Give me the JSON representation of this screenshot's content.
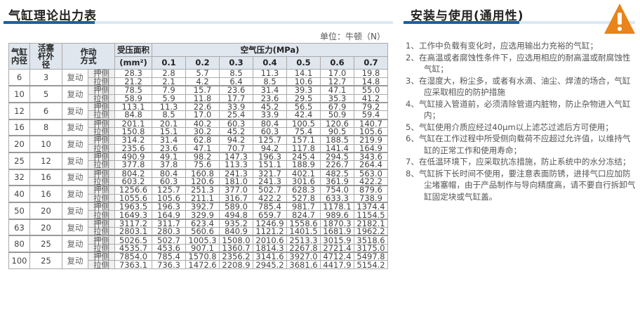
{
  "left": {
    "title": "气缸理论出力表",
    "unit": "单位：牛顿（N）",
    "headers": {
      "bore": "气缸内径",
      "rod": "活塞杆外径",
      "action": "作动方式",
      "area": "受压面积",
      "area_unit": "(mm²)",
      "pressure": "空气压力(MPa)",
      "pressures": [
        "0.1",
        "0.2",
        "0.3",
        "0.4",
        "0.5",
        "0.6",
        "0.7"
      ]
    },
    "action_label": "复动",
    "push": "押侧",
    "pull": "拉侧",
    "rows": [
      {
        "bore": "6",
        "rod": "3",
        "push": [
          "28.3",
          "2.8",
          "5.7",
          "8.5",
          "11.3",
          "14.1",
          "17.0",
          "19.8"
        ],
        "pull": [
          "21.2",
          "2.1",
          "4.2",
          "6.4",
          "8.5",
          "10.6",
          "12.7",
          "14.8"
        ]
      },
      {
        "bore": "10",
        "rod": "5",
        "push": [
          "78.5",
          "7.9",
          "15.7",
          "23.6",
          "31.4",
          "39.3",
          "47.1",
          "55.0"
        ],
        "pull": [
          "58.9",
          "5.9",
          "11.8",
          "17.7",
          "23.6",
          "29.5",
          "35.3",
          "41.2"
        ]
      },
      {
        "bore": "12",
        "rod": "6",
        "push": [
          "113.1",
          "11.3",
          "22.6",
          "33.9",
          "45.2",
          "56.5",
          "67.9",
          "79.2"
        ],
        "pull": [
          "84.8",
          "8.5",
          "17.0",
          "25.4",
          "33.9",
          "42.4",
          "50.9",
          "59.4"
        ]
      },
      {
        "bore": "16",
        "rod": "8",
        "push": [
          "201.1",
          "20.1",
          "40.2",
          "60.3",
          "80.4",
          "100.5",
          "120.6",
          "140.7"
        ],
        "pull": [
          "150.8",
          "15.1",
          "30.2",
          "45.2",
          "60.3",
          "75.4",
          "90.5",
          "105.6"
        ]
      },
      {
        "bore": "20",
        "rod": "10",
        "push": [
          "314.2",
          "31.4",
          "62.8",
          "94.2",
          "125.7",
          "157.1",
          "188.5",
          "219.9"
        ],
        "pull": [
          "235.6",
          "23.6",
          "47.1",
          "70.7",
          "94.2",
          "117.8",
          "141.4",
          "164.9"
        ]
      },
      {
        "bore": "25",
        "rod": "12",
        "push": [
          "490.9",
          "49.1",
          "98.2",
          "147.3",
          "196.3",
          "245.4",
          "294.5",
          "343.6"
        ],
        "pull": [
          "377.8",
          "37.8",
          "75.6",
          "113.3",
          "151.1",
          "188.9",
          "226.7",
          "264.4"
        ]
      },
      {
        "bore": "32",
        "rod": "16",
        "push": [
          "804.2",
          "80.4",
          "160.8",
          "241.3",
          "321.7",
          "402.1",
          "482.5",
          "563.0"
        ],
        "pull": [
          "603.2",
          "60.3",
          "120.6",
          "181.0",
          "241.3",
          "301.6",
          "361.9",
          "422.2"
        ]
      },
      {
        "bore": "40",
        "rod": "16",
        "push": [
          "1256.6",
          "125.7",
          "251.3",
          "377.0",
          "502.7",
          "628.3",
          "754.0",
          "879.6"
        ],
        "pull": [
          "1055.6",
          "105.6",
          "211.1",
          "316.7",
          "422.2",
          "527.8",
          "633.3",
          "738.9"
        ]
      },
      {
        "bore": "50",
        "rod": "20",
        "push": [
          "1963.5",
          "196.3",
          "392.7",
          "589.0",
          "785.4",
          "981.7",
          "1178.1",
          "1374.4"
        ],
        "pull": [
          "1649.3",
          "164.9",
          "329.9",
          "494.8",
          "659.7",
          "824.7",
          "989.6",
          "1154.5"
        ]
      },
      {
        "bore": "63",
        "rod": "20",
        "push": [
          "3117.2",
          "311.7",
          "623.4",
          "935.2",
          "1246.9",
          "1558.6",
          "1870.3",
          "2182.1"
        ],
        "pull": [
          "2803.1",
          "280.3",
          "560.6",
          "840.9",
          "1121.2",
          "1401.5",
          "1681.9",
          "1962.2"
        ]
      },
      {
        "bore": "80",
        "rod": "25",
        "push": [
          "5026.5",
          "502.7",
          "1005.3",
          "1508.0",
          "2010.6",
          "2513.3",
          "3015.9",
          "3518.6"
        ],
        "pull": [
          "4535.7",
          "453.6",
          "907.1",
          "1360.7",
          "1814.3",
          "2267.8",
          "2721.4",
          "3175.0"
        ]
      },
      {
        "bore": "100",
        "rod": "25",
        "push": [
          "7854.0",
          "785.4",
          "1570.8",
          "2356.2",
          "3141.6",
          "3927.0",
          "4712.4",
          "5497.8"
        ],
        "pull": [
          "7363.1",
          "736.3",
          "1472.6",
          "2208.9",
          "2945.2",
          "3681.6",
          "4417.9",
          "5154.2"
        ]
      }
    ]
  },
  "right": {
    "title": "安装与使用(通用性)",
    "warning_icon": "warning-triangle-icon",
    "warning_color": "#e8841a",
    "notes": [
      "1、工作中负载有变化时，应选用输出力充裕的气缸；",
      "2、在高温或者腐蚀性条件下，应选用相应的耐高温或耐腐蚀性气缸；",
      "3、在湿度大，粉尘多，或者有水滴、油尘、焊渣的场合，气缸应采取相应的防护措施",
      "4、气缸接入管道前，必须清除管道内脏物，防止杂物进入气缸内；",
      "5、气缸使用介质应经过40μm以上滤芯过滤后方可使用；",
      "6、气缸在工作过程中所受侧向载荷不应超过允许值，以维持气缸的正常工作和使用寿命；",
      "7、在低温环境下，应采取抗冻措施，防止系统中的水分冻结；",
      "8、气缸拆下长时间不使用，要注意表面防锈，进排气口应加防尘堵塞帽，由于产品制作与导向精度高，请不要自行拆卸气缸固定块或气缸盖。"
    ]
  },
  "colors": {
    "accent": "#1d5fa0",
    "header_bg": "#dfe6ee"
  }
}
